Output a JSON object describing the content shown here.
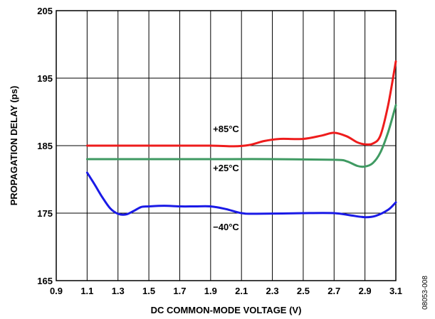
{
  "chart_data": {
    "type": "line",
    "xlabel": "DC COMMON-MODE VOLTAGE (V)",
    "ylabel": "PROPAGATION DELAY (ps)",
    "xlim": [
      0.9,
      3.1
    ],
    "ylim": [
      165,
      205
    ],
    "x_ticks": [
      "0.9",
      "1.1",
      "1.3",
      "1.5",
      "1.7",
      "1.9",
      "2.1",
      "2.3",
      "2.5",
      "2.7",
      "2.9",
      "3.1"
    ],
    "y_ticks": [
      "165",
      "175",
      "185",
      "195",
      "205"
    ],
    "x_tick_values": [
      0.9,
      1.1,
      1.3,
      1.5,
      1.7,
      1.9,
      2.1,
      2.3,
      2.5,
      2.7,
      2.9,
      3.1
    ],
    "y_tick_values": [
      165,
      175,
      185,
      195,
      205
    ],
    "grid": true,
    "figure_id": "08053-008",
    "series": [
      {
        "name": "+85°C",
        "color": "#ee1c1c",
        "label_at": [
          2.0,
          187.0
        ],
        "points": [
          [
            1.1,
            185.0
          ],
          [
            1.5,
            185.0
          ],
          [
            1.9,
            185.0
          ],
          [
            2.05,
            184.9
          ],
          [
            2.15,
            185.1
          ],
          [
            2.25,
            185.7
          ],
          [
            2.35,
            186.0
          ],
          [
            2.5,
            186.0
          ],
          [
            2.62,
            186.5
          ],
          [
            2.7,
            186.9
          ],
          [
            2.78,
            186.4
          ],
          [
            2.85,
            185.5
          ],
          [
            2.9,
            185.2
          ],
          [
            2.95,
            185.3
          ],
          [
            3.0,
            186.5
          ],
          [
            3.05,
            191.0
          ],
          [
            3.1,
            197.5
          ]
        ]
      },
      {
        "name": "+25°C",
        "color": "#3f9a62",
        "label_at": [
          2.0,
          181.2
        ],
        "points": [
          [
            1.1,
            183.0
          ],
          [
            1.5,
            183.0
          ],
          [
            1.9,
            183.0
          ],
          [
            2.3,
            183.0
          ],
          [
            2.7,
            182.9
          ],
          [
            2.78,
            182.7
          ],
          [
            2.85,
            182.0
          ],
          [
            2.9,
            181.9
          ],
          [
            2.95,
            182.4
          ],
          [
            3.0,
            184.0
          ],
          [
            3.05,
            187.0
          ],
          [
            3.1,
            191.0
          ]
        ]
      },
      {
        "name": "−40°C",
        "color": "#1a1ae6",
        "label_at": [
          2.0,
          172.5
        ],
        "points": [
          [
            1.1,
            181.0
          ],
          [
            1.15,
            179.2
          ],
          [
            1.2,
            177.3
          ],
          [
            1.25,
            175.7
          ],
          [
            1.3,
            174.9
          ],
          [
            1.35,
            174.8
          ],
          [
            1.4,
            175.3
          ],
          [
            1.45,
            175.9
          ],
          [
            1.5,
            176.0
          ],
          [
            1.6,
            176.1
          ],
          [
            1.7,
            176.0
          ],
          [
            1.8,
            176.0
          ],
          [
            1.9,
            176.0
          ],
          [
            2.0,
            175.6
          ],
          [
            2.1,
            175.0
          ],
          [
            2.2,
            174.9
          ],
          [
            2.5,
            175.0
          ],
          [
            2.7,
            175.0
          ],
          [
            2.8,
            174.7
          ],
          [
            2.9,
            174.4
          ],
          [
            2.97,
            174.6
          ],
          [
            3.05,
            175.5
          ],
          [
            3.1,
            176.6
          ]
        ]
      }
    ]
  }
}
